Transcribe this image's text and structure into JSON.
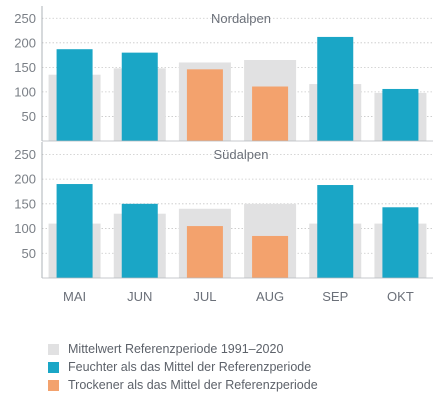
{
  "colors": {
    "reference": "#e1e1e2",
    "wetter": "#1aa6c6",
    "drier": "#f3a26d",
    "grid": "#c8c8c8",
    "axis": "#7a7f86"
  },
  "legend": [
    {
      "key": "reference",
      "label": "Mittelwert Referenzperiode 1991–2020"
    },
    {
      "key": "wetter",
      "label": "Feuchter als das Mittel der Referenzperiode"
    },
    {
      "key": "drier",
      "label": "Trockener als das Mittel der Referenzperiode"
    }
  ],
  "chart_data": [
    {
      "type": "bar",
      "title": "Nordalpen",
      "categories": [
        "MAI",
        "JUN",
        "JUL",
        "AUG",
        "SEP",
        "OKT"
      ],
      "ylim": [
        0,
        275
      ],
      "yticks": [
        50,
        100,
        150,
        200,
        250
      ],
      "reference": [
        135,
        148,
        160,
        165,
        116,
        98
      ],
      "values": [
        187,
        180,
        146,
        111,
        212,
        106
      ],
      "status": [
        "wetter",
        "wetter",
        "drier",
        "drier",
        "wetter",
        "wetter"
      ]
    },
    {
      "type": "bar",
      "title": "Südalpen",
      "categories": [
        "MAI",
        "JUN",
        "JUL",
        "AUG",
        "SEP",
        "OKT"
      ],
      "ylim": [
        0,
        275
      ],
      "yticks": [
        50,
        100,
        150,
        200,
        250
      ],
      "reference": [
        110,
        130,
        140,
        150,
        110,
        110
      ],
      "values": [
        190,
        150,
        105,
        85,
        188,
        143
      ],
      "status": [
        "wetter",
        "wetter",
        "drier",
        "drier",
        "wetter",
        "wetter"
      ]
    }
  ]
}
